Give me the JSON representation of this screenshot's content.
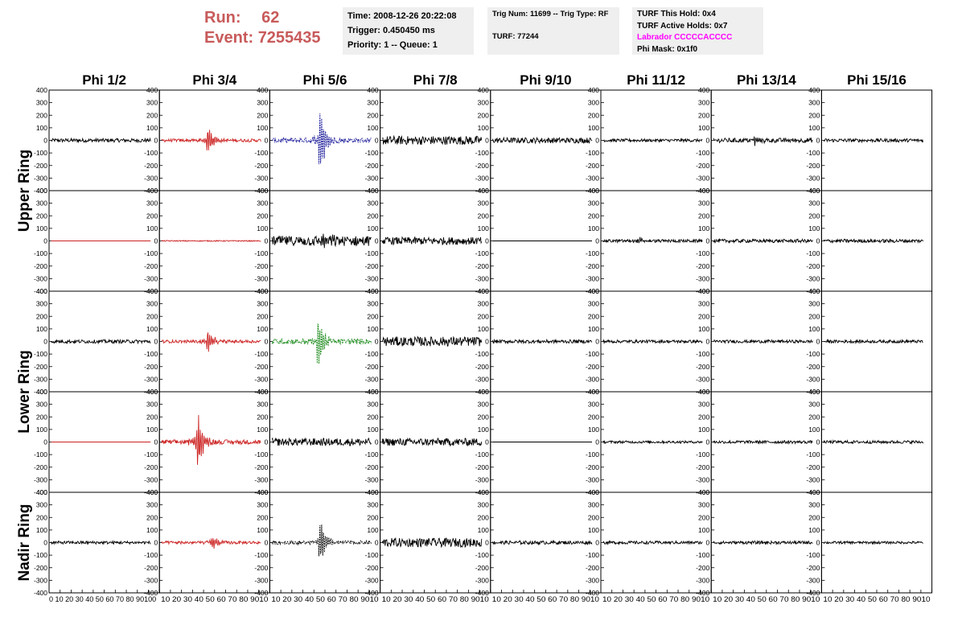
{
  "header": {
    "run_label": "Run:",
    "run_value": "62",
    "event_label": "Event:",
    "event_value": "7255435"
  },
  "info_time": {
    "time": "Time: 2008-12-26 20:22:08",
    "trigger": "Trigger: 0.450450 ms",
    "priority": "Priority: 1 -- Queue: 1"
  },
  "info_trig": {
    "trig_line": "Trig Num: 11699 -- Trig Type: RF",
    "turf_line": "TURF: 77244"
  },
  "info_turf": {
    "this_hold": "TURF This Hold: 0x4",
    "active_holds": "TURF Active Holds: 0x7",
    "labrador": "Labrador CCCCCACCCC",
    "phi_mask": "Phi Mask: 0x1f0"
  },
  "colors": {
    "run_text": "#c85a5a",
    "labrador_text": "#ff00ff",
    "trace_black": "#000000",
    "trace_red": "#cc2222",
    "trace_blue": "#1a1a9a",
    "trace_green": "#1a8a1a",
    "info_box_bg": "#efefef"
  },
  "chart_data": {
    "type": "line",
    "description_axes": "grid of waveform panels",
    "columns": [
      "Phi 1/2",
      "Phi 3/4",
      "Phi 5/6",
      "Phi 7/8",
      "Phi 9/10",
      "Phi 11/12",
      "Phi 13/14",
      "Phi 15/16"
    ],
    "rings": [
      "Upper Ring",
      "Lower Ring",
      "Nadir Ring"
    ],
    "ylim": [
      -400,
      400
    ],
    "yticks": [
      400,
      300,
      200,
      100,
      0,
      -100,
      -200,
      -300,
      -400
    ],
    "xlim": [
      0,
      100
    ],
    "xticks": [
      0,
      10,
      20,
      30,
      40,
      50,
      60,
      70,
      80,
      90,
      100
    ],
    "xtick_labels_first": "0  10 20 30 40 50 60 70 80 90100",
    "xtick_labels_other": "10 20 30 40 50 60 70 80 9010",
    "rows": [
      {
        "ring": "Upper Ring",
        "traces": [
          {
            "color": "black",
            "noise": 15,
            "pulse": 0,
            "center": 50
          },
          {
            "color": "red",
            "noise": 12,
            "pulse": 130,
            "center": 44
          },
          {
            "color": "blue",
            "noise": 20,
            "pulse": 340,
            "center": 46,
            "dashed": true
          },
          {
            "color": "black",
            "noise": 35,
            "pulse": 0,
            "center": 50
          },
          {
            "color": "black",
            "noise": 22,
            "pulse": 0,
            "center": 50
          },
          {
            "color": "black",
            "noise": 12,
            "pulse": 0,
            "center": 50
          },
          {
            "color": "black",
            "noise": 18,
            "pulse": 40,
            "center": 40
          },
          {
            "color": "black",
            "noise": 14,
            "pulse": 0,
            "center": 50
          }
        ]
      },
      {
        "ring": "Upper Ring",
        "traces": [
          {
            "color": "red",
            "noise": 0,
            "pulse": 0,
            "center": 50
          },
          {
            "color": "red",
            "noise": 4,
            "pulse": 0,
            "center": 50
          },
          {
            "color": "black",
            "noise": 40,
            "pulse": 80,
            "center": 50
          },
          {
            "color": "black",
            "noise": 30,
            "pulse": 0,
            "center": 50
          },
          {
            "color": "black",
            "noise": 0,
            "pulse": 0,
            "center": 50
          },
          {
            "color": "black",
            "noise": 12,
            "pulse": 25,
            "center": 35
          },
          {
            "color": "black",
            "noise": 14,
            "pulse": 0,
            "center": 50
          },
          {
            "color": "black",
            "noise": 14,
            "pulse": 0,
            "center": 50
          }
        ]
      },
      {
        "ring": "Lower Ring",
        "traces": [
          {
            "color": "black",
            "noise": 14,
            "pulse": 0,
            "center": 50
          },
          {
            "color": "red",
            "noise": 12,
            "pulse": 120,
            "center": 44
          },
          {
            "color": "green",
            "noise": 22,
            "pulse": 260,
            "center": 44,
            "dashed": true
          },
          {
            "color": "black",
            "noise": 38,
            "pulse": 0,
            "center": 50
          },
          {
            "color": "black",
            "noise": 14,
            "pulse": 0,
            "center": 50
          },
          {
            "color": "black",
            "noise": 12,
            "pulse": 0,
            "center": 50
          },
          {
            "color": "black",
            "noise": 12,
            "pulse": 0,
            "center": 50
          },
          {
            "color": "black",
            "noise": 12,
            "pulse": 0,
            "center": 50
          }
        ]
      },
      {
        "ring": "Lower Ring",
        "traces": [
          {
            "color": "red",
            "noise": 0,
            "pulse": 0,
            "center": 50
          },
          {
            "color": "red",
            "noise": 18,
            "pulse": 270,
            "center": 35
          },
          {
            "color": "black",
            "noise": 30,
            "pulse": 0,
            "center": 50
          },
          {
            "color": "black",
            "noise": 30,
            "pulse": 0,
            "center": 50
          },
          {
            "color": "black",
            "noise": 0,
            "pulse": 0,
            "center": 50
          },
          {
            "color": "black",
            "noise": 10,
            "pulse": 0,
            "center": 50
          },
          {
            "color": "black",
            "noise": 12,
            "pulse": 0,
            "center": 50
          },
          {
            "color": "black",
            "noise": 12,
            "pulse": 0,
            "center": 50
          }
        ]
      },
      {
        "ring": "Nadir Ring",
        "traces": [
          {
            "color": "black",
            "noise": 12,
            "pulse": 0,
            "center": 50
          },
          {
            "color": "red",
            "noise": 12,
            "pulse": 60,
            "center": 48
          },
          {
            "color": "black",
            "noise": 15,
            "pulse": 230,
            "center": 46,
            "dashed": true
          },
          {
            "color": "black",
            "noise": 35,
            "pulse": 0,
            "center": 55
          },
          {
            "color": "black",
            "noise": 14,
            "pulse": 0,
            "center": 50
          },
          {
            "color": "black",
            "noise": 12,
            "pulse": 0,
            "center": 50
          },
          {
            "color": "black",
            "noise": 12,
            "pulse": 0,
            "center": 50
          },
          {
            "color": "black",
            "noise": 10,
            "pulse": 0,
            "center": 50
          }
        ]
      }
    ]
  }
}
